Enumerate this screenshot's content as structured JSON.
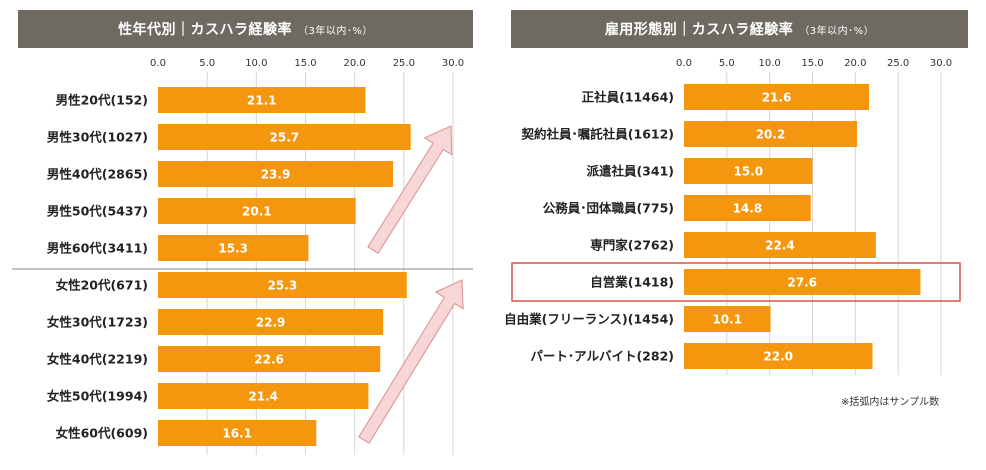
{
  "colors": {
    "bar": "#f5960f",
    "header_bg": "#6e6a62",
    "highlight_border": "#d9534f",
    "arrow_fill": "#f6d6d6",
    "arrow_stroke": "#dc8e8e",
    "grid": "#d5d5d5"
  },
  "left_panel": {
    "header_title": "性年代別｜カスハラ経験率",
    "header_sub": "（3年以内･%）"
  },
  "right_panel": {
    "header_title": "雇用形態別｜カスハラ経験率",
    "header_sub": "（3年以内･%）",
    "note": "※括弧内はサンプル数"
  },
  "chart_data": [
    {
      "type": "bar",
      "orientation": "horizontal",
      "title": "性年代別｜カスハラ経験率（3年以内･%）",
      "xlim": [
        0,
        30
      ],
      "ticks": [
        "0.0",
        "5.0",
        "10.0",
        "15.0",
        "20.0",
        "25.0",
        "30.0"
      ],
      "grid": true,
      "categories": [
        "男性20代(152)",
        "男性30代(1027)",
        "男性40代(2865)",
        "男性50代(5437)",
        "男性60代(3411)",
        "女性20代(671)",
        "女性30代(1723)",
        "女性40代(2219)",
        "女性50代(1994)",
        "女性60代(609)"
      ],
      "values": [
        21.1,
        25.7,
        23.9,
        20.1,
        15.3,
        25.3,
        22.9,
        22.6,
        21.4,
        16.1
      ],
      "value_labels": [
        "21.1",
        "25.7",
        "23.9",
        "20.1",
        "15.3",
        "25.3",
        "22.9",
        "22.6",
        "21.4",
        "16.1"
      ]
    },
    {
      "type": "bar",
      "orientation": "horizontal",
      "title": "雇用形態別｜カスハラ経験率（3年以内･%）",
      "xlim": [
        0,
        30
      ],
      "ticks": [
        "0.0",
        "5.0",
        "10.0",
        "15.0",
        "20.0",
        "25.0",
        "30.0"
      ],
      "grid": true,
      "categories": [
        "正社員(11464)",
        "契約社員･嘱託社員(1612)",
        "派遣社員(341)",
        "公務員･団体職員(775)",
        "専門家(2762)",
        "自営業(1418)",
        "自由業(フリーランス)(1454)",
        "パート･アルバイト(282)"
      ],
      "values": [
        21.6,
        20.2,
        15.0,
        14.8,
        22.4,
        27.6,
        10.1,
        22.0
      ],
      "value_labels": [
        "21.6",
        "20.2",
        "15.0",
        "14.8",
        "22.4",
        "27.6",
        "10.1",
        "22.0"
      ],
      "highlighted_category": "自営業(1418)"
    }
  ]
}
